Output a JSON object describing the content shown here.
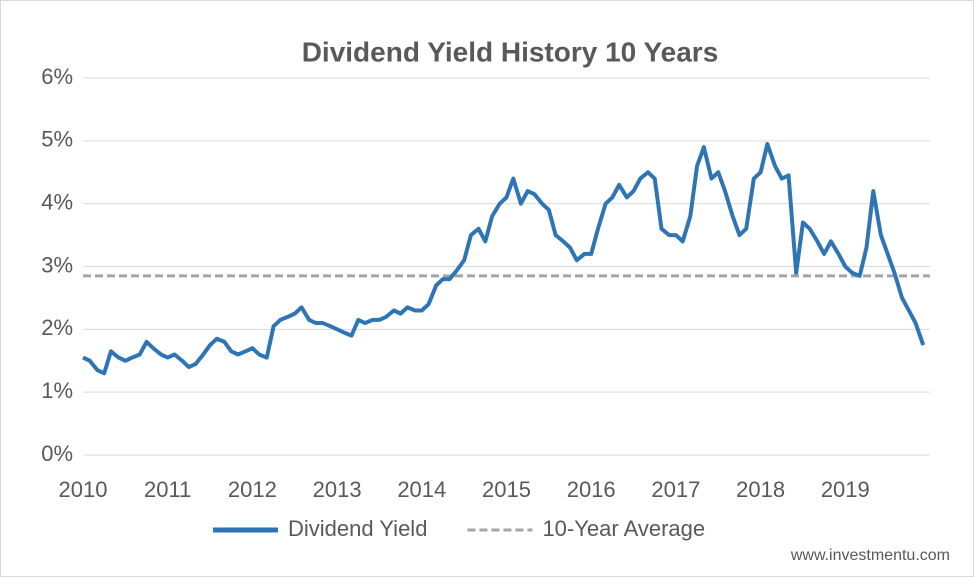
{
  "chart_data": {
    "type": "line",
    "title": "Dividend Yield History 10 Years",
    "watermark": "www.investmentu.com",
    "x": [
      2010,
      2010.08,
      2010.17,
      2010.25,
      2010.33,
      2010.42,
      2010.5,
      2010.58,
      2010.67,
      2010.75,
      2010.83,
      2010.92,
      2011,
      2011.08,
      2011.17,
      2011.25,
      2011.33,
      2011.42,
      2011.5,
      2011.58,
      2011.67,
      2011.75,
      2011.83,
      2011.92,
      2012,
      2012.08,
      2012.17,
      2012.25,
      2012.33,
      2012.42,
      2012.5,
      2012.58,
      2012.67,
      2012.75,
      2012.83,
      2012.92,
      2013,
      2013.08,
      2013.17,
      2013.25,
      2013.33,
      2013.42,
      2013.5,
      2013.58,
      2013.67,
      2013.75,
      2013.83,
      2013.92,
      2014,
      2014.08,
      2014.17,
      2014.25,
      2014.33,
      2014.42,
      2014.5,
      2014.58,
      2014.67,
      2014.75,
      2014.83,
      2014.92,
      2015,
      2015.08,
      2015.17,
      2015.25,
      2015.33,
      2015.42,
      2015.5,
      2015.58,
      2015.67,
      2015.75,
      2015.83,
      2015.92,
      2016,
      2016.08,
      2016.17,
      2016.25,
      2016.33,
      2016.42,
      2016.5,
      2016.58,
      2016.67,
      2016.75,
      2016.83,
      2016.92,
      2017,
      2017.08,
      2017.17,
      2017.25,
      2017.33,
      2017.42,
      2017.5,
      2017.58,
      2017.67,
      2017.75,
      2017.83,
      2017.92,
      2018,
      2018.08,
      2018.17,
      2018.25,
      2018.33,
      2018.42,
      2018.5,
      2018.58,
      2018.67,
      2018.75,
      2018.83,
      2018.92,
      2019,
      2019.08,
      2019.17,
      2019.25,
      2019.33,
      2019.42,
      2019.5,
      2019.58,
      2019.67,
      2019.75,
      2019.83,
      2019.92
    ],
    "series": [
      {
        "name": "Dividend Yield",
        "color": "#2e75b6",
        "values": [
          1.55,
          1.5,
          1.35,
          1.3,
          1.65,
          1.55,
          1.5,
          1.55,
          1.6,
          1.8,
          1.7,
          1.6,
          1.55,
          1.6,
          1.5,
          1.4,
          1.45,
          1.6,
          1.75,
          1.85,
          1.8,
          1.65,
          1.6,
          1.65,
          1.7,
          1.6,
          1.55,
          2.05,
          2.15,
          2.2,
          2.25,
          2.35,
          2.15,
          2.1,
          2.1,
          2.05,
          2.0,
          1.95,
          1.9,
          2.15,
          2.1,
          2.15,
          2.15,
          2.2,
          2.3,
          2.25,
          2.35,
          2.3,
          2.3,
          2.4,
          2.7,
          2.8,
          2.8,
          2.95,
          3.1,
          3.5,
          3.6,
          3.4,
          3.8,
          4.0,
          4.1,
          4.4,
          4.0,
          4.2,
          4.15,
          4.0,
          3.9,
          3.5,
          3.4,
          3.3,
          3.1,
          3.2,
          3.2,
          3.6,
          4.0,
          4.1,
          4.3,
          4.1,
          4.2,
          4.4,
          4.5,
          4.4,
          3.6,
          3.5,
          3.5,
          3.4,
          3.8,
          4.6,
          4.9,
          4.4,
          4.5,
          4.2,
          3.8,
          3.5,
          3.6,
          4.4,
          4.5,
          4.95,
          4.6,
          4.4,
          4.45,
          2.9,
          3.7,
          3.6,
          3.4,
          3.2,
          3.4,
          3.2,
          3.0,
          2.9,
          2.85,
          3.3,
          4.2,
          3.5,
          3.2,
          2.9,
          2.5,
          2.3,
          2.1,
          1.75
        ]
      }
    ],
    "reference_lines": [
      {
        "name": "10-Year Average",
        "value": 2.85,
        "color": "#a5a5a5"
      }
    ],
    "xlim": [
      2010,
      2020
    ],
    "xticks": [
      2010,
      2011,
      2012,
      2013,
      2014,
      2015,
      2016,
      2017,
      2018,
      2019
    ],
    "ylim": [
      0,
      6
    ],
    "yticks": [
      {
        "value": 0,
        "label": "0%"
      },
      {
        "value": 1,
        "label": "1%"
      },
      {
        "value": 2,
        "label": "2%"
      },
      {
        "value": 3,
        "label": "3%"
      },
      {
        "value": 4,
        "label": "4%"
      },
      {
        "value": 5,
        "label": "5%"
      },
      {
        "value": 6,
        "label": "6%"
      }
    ],
    "grid": true,
    "legend": "bottom"
  }
}
